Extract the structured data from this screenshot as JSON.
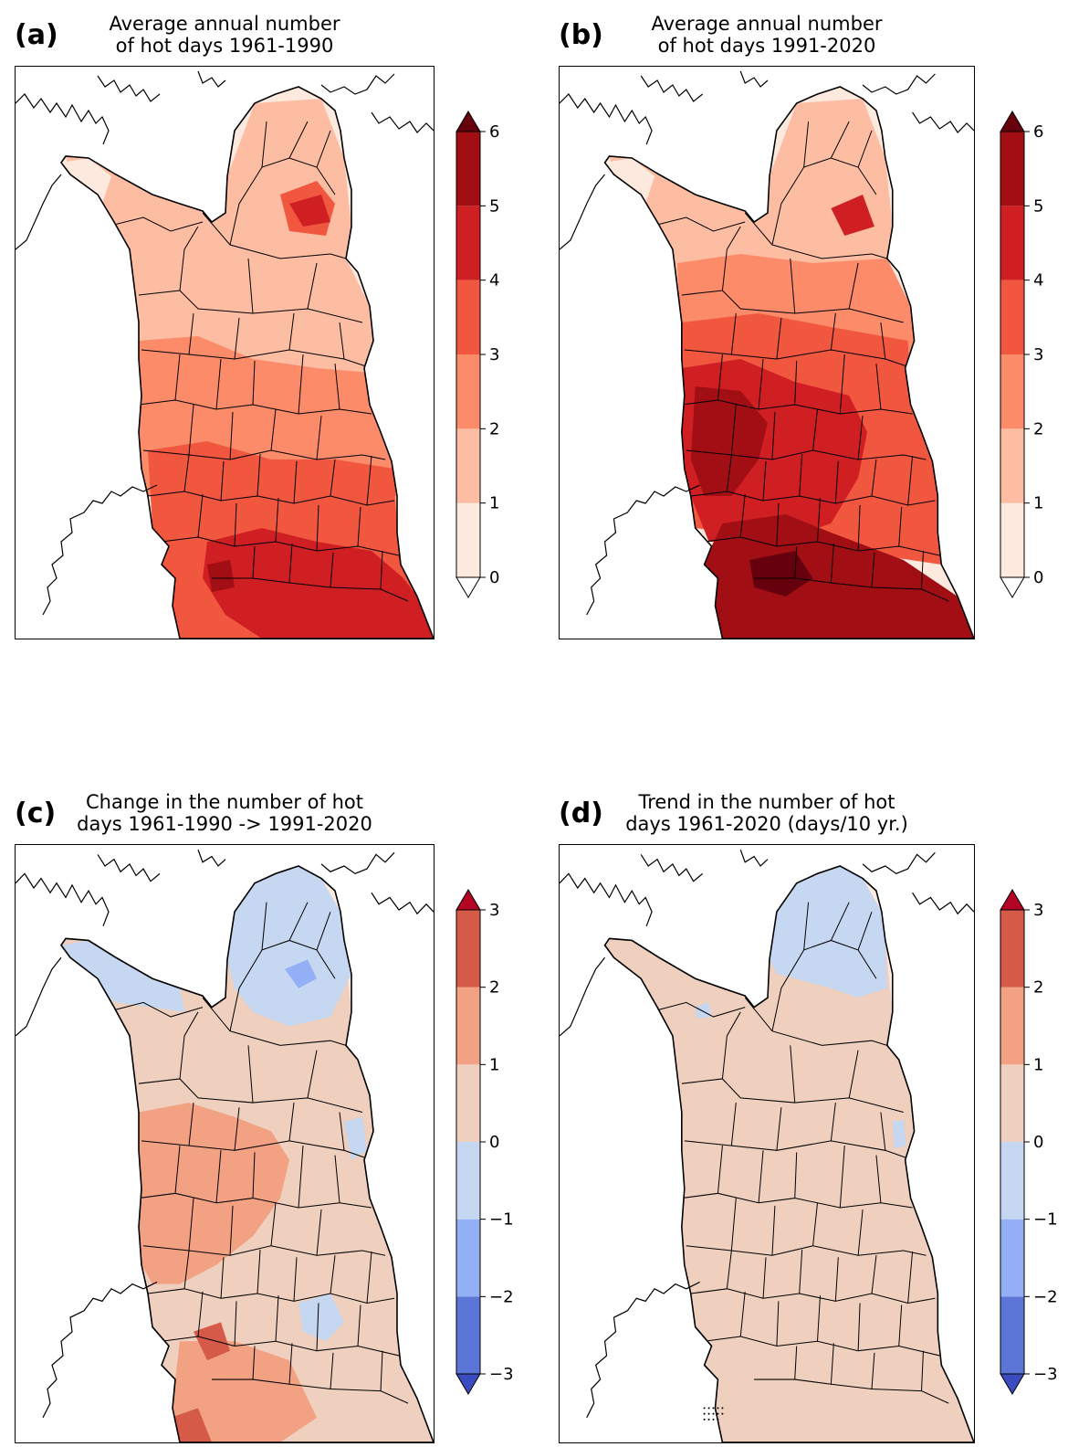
{
  "panels": [
    {
      "label": "(a)",
      "title_line1": "Average annual number",
      "title_line2": "of hot days 1961-1990",
      "scale": "hot",
      "colorbar": {
        "ticks": [
          "0",
          "1",
          "2",
          "3",
          "4",
          "5",
          "6"
        ],
        "colors": [
          "#fee9df",
          "#fcbda3",
          "#fb8b69",
          "#f1563f",
          "#cf1f23",
          "#a10f14"
        ],
        "under_color": "#ffffff",
        "over_color": "#67000d"
      }
    },
    {
      "label": "(b)",
      "title_line1": "Average annual number",
      "title_line2": "of hot days 1991-2020",
      "scale": "hot2",
      "colorbar": {
        "ticks": [
          "0",
          "1",
          "2",
          "3",
          "4",
          "5",
          "6"
        ],
        "colors": [
          "#fee9df",
          "#fcbda3",
          "#fb8b69",
          "#f1563f",
          "#cf1f23",
          "#a10f14"
        ],
        "under_color": "#ffffff",
        "over_color": "#67000d"
      }
    },
    {
      "label": "(c)",
      "title_line1": "Change in the number of hot",
      "title_line2": "days 1961-1990 -> 1991-2020",
      "scale": "change",
      "colorbar": {
        "ticks": [
          "−3",
          "−2",
          "−1",
          "0",
          "1",
          "2",
          "3"
        ],
        "colors": [
          "#5b76d6",
          "#93aff5",
          "#c6d7f1",
          "#efcfbd",
          "#f2a283",
          "#d55a47"
        ],
        "under_color": "#3b4cc0",
        "over_color": "#b40426"
      }
    },
    {
      "label": "(d)",
      "title_line1": "Trend in the number of hot",
      "title_line2": "days 1961-2020 (days/10 yr.)",
      "scale": "trend",
      "colorbar": {
        "ticks": [
          "−3",
          "−2",
          "−1",
          "0",
          "1",
          "2",
          "3"
        ],
        "colors": [
          "#5b76d6",
          "#93aff5",
          "#c6d7f1",
          "#efcfbd",
          "#f2a283",
          "#d55a47"
        ],
        "under_color": "#3b4cc0",
        "over_color": "#b40426"
      }
    }
  ]
}
